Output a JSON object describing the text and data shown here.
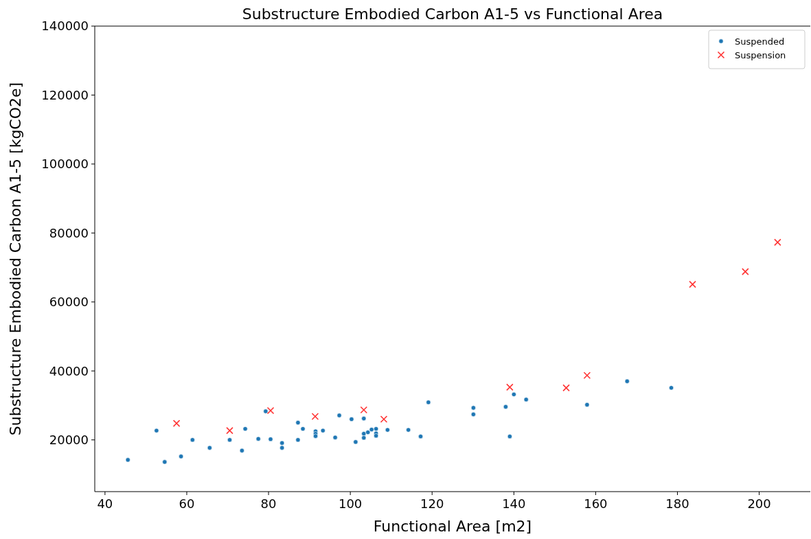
{
  "chart_data": {
    "type": "scatter",
    "title": "Substructure Embodied Carbon A1-5 vs Functional Area",
    "xlabel": "Functional Area [m2]",
    "ylabel": "Substructure Embodied Carbon A1-5 [kgCO2e]",
    "xlim": [
      37.5,
      212.5
    ],
    "ylim": [
      5000,
      140000
    ],
    "xticks": [
      40,
      60,
      80,
      100,
      120,
      140,
      160,
      180,
      200
    ],
    "yticks": [
      20000,
      40000,
      60000,
      80000,
      100000,
      120000,
      140000
    ],
    "grid": false,
    "legend": "top right",
    "series": [
      {
        "name": "Suspended",
        "color": "#1f77b4",
        "marker": "circle",
        "x": [
          45.6,
          52.6,
          54.6,
          58.6,
          61.4,
          65.6,
          70.5,
          73.5,
          74.3,
          77.5,
          79.3,
          80.5,
          83.3,
          83.3,
          87.2,
          87.2,
          88.4,
          91.5,
          91.5,
          91.5,
          93.3,
          96.3,
          97.3,
          100.3,
          101.3,
          103.3,
          103.3,
          103.3,
          104.3,
          105.2,
          106.3,
          106.3,
          106.3,
          109.1,
          114.2,
          117.2,
          119.1,
          130.1,
          130.1,
          138.0,
          139.0,
          140.0,
          143.0,
          157.9,
          167.7,
          178.5
        ],
        "values": [
          14200,
          22700,
          13600,
          15200,
          20000,
          17700,
          20000,
          16900,
          23200,
          20300,
          28300,
          20200,
          19100,
          17700,
          25000,
          20000,
          23200,
          22500,
          21800,
          21100,
          22700,
          20700,
          27100,
          26000,
          19400,
          26200,
          21800,
          20600,
          22200,
          23000,
          23200,
          21900,
          21200,
          22900,
          22900,
          21000,
          30900,
          29300,
          27400,
          29600,
          21000,
          33200,
          31700,
          30200,
          37000,
          35100
        ]
      },
      {
        "name": "Suspension",
        "color": "#ff0000",
        "marker": "cross",
        "x": [
          57.5,
          70.5,
          80.5,
          91.4,
          103.3,
          108.2,
          139.0,
          152.8,
          157.9,
          183.7,
          196.6,
          204.5
        ],
        "values": [
          24800,
          22700,
          28500,
          26800,
          28700,
          26000,
          35300,
          35100,
          38700,
          65100,
          68800,
          77300
        ]
      }
    ]
  }
}
